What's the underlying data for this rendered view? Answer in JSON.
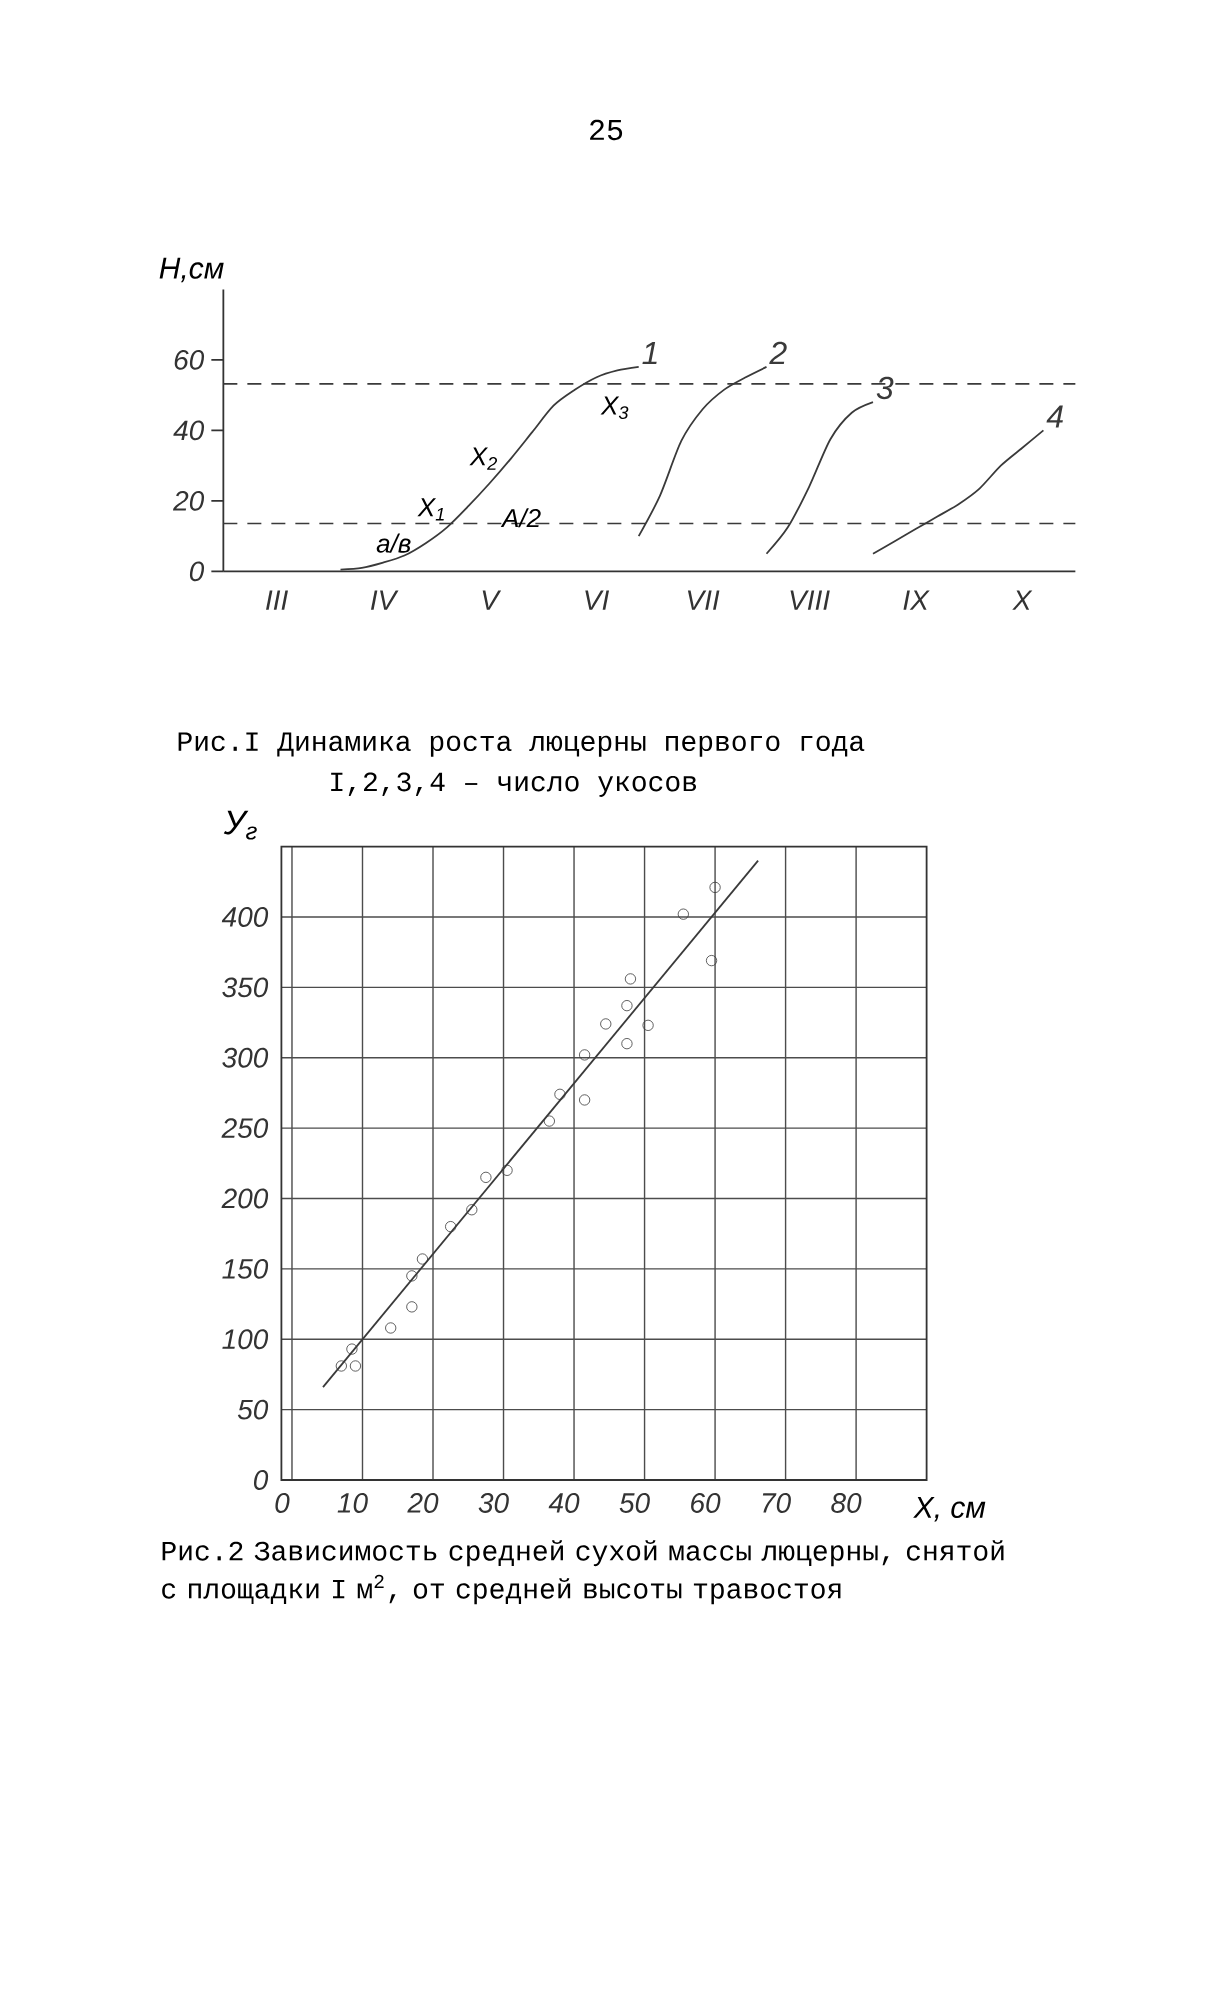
{
  "chart_data": [
    {
      "type": "line",
      "title": "Рис.I   Динамика роста люцерны первого года",
      "subtitle": "I,2,3,4 – число укосов",
      "ylabel": "Н,см",
      "categories": [
        null,
        null,
        "III",
        null,
        null,
        null,
        null,
        "IV",
        null,
        null,
        null,
        null,
        "V",
        null,
        null,
        null,
        null,
        "VI",
        null,
        null,
        null,
        null,
        "VII",
        null,
        null,
        null,
        null,
        "VIII",
        null,
        null,
        null,
        null,
        "IX",
        null,
        null,
        null,
        null,
        "X",
        null,
        null
      ],
      "ylim": [
        0,
        80
      ],
      "yticks": [
        0,
        20,
        40,
        60
      ],
      "series": [
        {
          "name": "1",
          "color": "#3a3a3a",
          "values": [
            null,
            null,
            null,
            null,
            null,
            0.5,
            1,
            2.5,
            4.5,
            8,
            12.5,
            18.5,
            25,
            32,
            39.5,
            47,
            51.5,
            55,
            57,
            58,
            null,
            null,
            null,
            null,
            null,
            null,
            null,
            null,
            null,
            null,
            null,
            null,
            null,
            null,
            null,
            null,
            null,
            null,
            null,
            null
          ]
        },
        {
          "name": "2",
          "color": "#3a3a3a",
          "values": [
            null,
            null,
            null,
            null,
            null,
            null,
            null,
            null,
            null,
            null,
            null,
            null,
            null,
            null,
            null,
            null,
            null,
            null,
            null,
            10,
            21.5,
            37,
            46,
            51.5,
            55,
            58,
            null,
            null,
            null,
            null,
            null,
            null,
            null,
            null,
            null,
            null,
            null,
            null,
            null,
            null
          ]
        },
        {
          "name": "3",
          "color": "#3a3a3a",
          "values": [
            null,
            null,
            null,
            null,
            null,
            null,
            null,
            null,
            null,
            null,
            null,
            null,
            null,
            null,
            null,
            null,
            null,
            null,
            null,
            null,
            null,
            null,
            null,
            null,
            null,
            5,
            12.5,
            24,
            37.5,
            45,
            48,
            null,
            null,
            null,
            null,
            null,
            null,
            null,
            null,
            null
          ]
        },
        {
          "name": "4",
          "color": "#3a3a3a",
          "values": [
            null,
            null,
            null,
            null,
            null,
            null,
            null,
            null,
            null,
            null,
            null,
            null,
            null,
            null,
            null,
            null,
            null,
            null,
            null,
            null,
            null,
            null,
            null,
            null,
            null,
            null,
            null,
            null,
            null,
            null,
            5,
            8.5,
            12,
            15.5,
            19,
            23.5,
            30,
            35,
            40,
            null
          ]
        }
      ],
      "ref_lines": [
        {
          "axis": "y",
          "value": 53.2,
          "line_style": "dashed",
          "color": "#3a3a3a"
        },
        {
          "axis": "y",
          "value": 13.6,
          "line_style": "dashed",
          "color": "#3a3a3a"
        }
      ],
      "annotations": [
        "25",
        "X$_{1}$",
        "X$_{2}$",
        "X$_{3}$",
        "а/в",
        "A/2"
      ],
      "marker": "none",
      "grid": false
    },
    {
      "type": "scatter",
      "title": "Рис.2   Зависимость средней сухой массы люцерны, снятой с площадки I м$^{2}$, от средней высоты травостоя",
      "xlabel": "X, см",
      "ylabel": "У$_{г}$",
      "xlim": [
        -1.5,
        90
      ],
      "ylim": [
        0,
        450
      ],
      "xticks": [
        0,
        10,
        20,
        30,
        40,
        50,
        60,
        70,
        80
      ],
      "yticks": [
        0,
        50,
        100,
        150,
        200,
        250,
        300,
        350,
        400
      ],
      "series": [
        {
          "type": "scatter",
          "color": "#3a3a3a",
          "marker": "circle",
          "x": [
            7,
            8.5,
            9,
            14,
            17,
            17,
            18.5,
            22.5,
            25.5,
            27.5,
            30.5,
            36.5,
            38,
            41.5,
            41.5,
            44.5,
            47.5,
            47.5,
            48,
            50.5,
            55.5,
            59.5,
            60
          ],
          "values": [
            81,
            93,
            81,
            108,
            123,
            145,
            157,
            180,
            192,
            215,
            220,
            255,
            274,
            270,
            302,
            324,
            337,
            310,
            356,
            323,
            402,
            369,
            421
          ]
        },
        {
          "type": "line",
          "color": "#3a3a3a",
          "marker": "none",
          "x": [
            4.4,
            66.1
          ],
          "values": [
            66,
            440
          ]
        }
      ],
      "grid": true
    }
  ]
}
